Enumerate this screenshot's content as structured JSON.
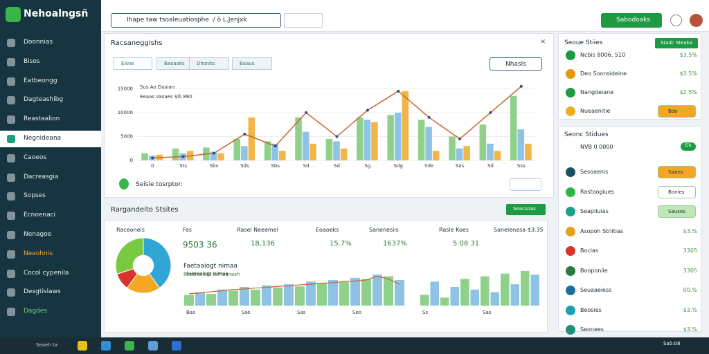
{
  "app": {
    "title": "Nehoalngsñ"
  },
  "sidebar": {
    "items": [
      "Doonnias",
      "Bisos",
      "Eatbeongg",
      "Dagteashibg",
      "Reastaalion",
      "Negnideana",
      "Caoeos",
      "Dacreasgia",
      "Sopses",
      "Ecnoenaci",
      "Nenagoe",
      "Neaohnis",
      "Cocol cypenila",
      "Desgtislaws",
      "Dagdes"
    ]
  },
  "topbar": {
    "search": "Ihape taw tsoaleuatiosphe ·/ ô L.Jenjxk",
    "button": "Sabodoaks"
  },
  "main": {
    "title": "Racsaneggishs",
    "tabs": [
      "Elsne",
      "Baoaaks",
      "Dhsnits",
      "Baaus"
    ],
    "filter": "Nhasls",
    "footer": "Seisle tosrptor:",
    "chart": {
      "type": "bar",
      "title": "Sus Ao Dusian",
      "subtitle": "Eeaas Vasaes $lli 880",
      "categories": [
        "0",
        "Sts",
        "Sbs",
        "Sds",
        "Sbs",
        "Sd",
        "Sd",
        "Sg",
        "Sdg",
        "Sde",
        "Sas",
        "Sd",
        "Sss"
      ],
      "series": [
        {
          "color": "#8fd18a",
          "values": [
            1500,
            2500,
            2700,
            4500,
            4000,
            9000,
            4500,
            9000,
            9500,
            8500,
            5000,
            7500,
            13500
          ]
        },
        {
          "color": "#8ec3e6",
          "values": [
            1000,
            1500,
            1800,
            3000,
            3500,
            6000,
            4000,
            8500,
            10000,
            7000,
            2500,
            3500,
            6500
          ]
        },
        {
          "color": "#f0b64a",
          "values": [
            1200,
            2000,
            1500,
            9000,
            2000,
            3500,
            2500,
            8000,
            14500,
            2000,
            3000,
            2000,
            3500
          ]
        }
      ],
      "line": {
        "color": "#c8642c",
        "values": [
          500,
          800,
          1500,
          5500,
          3000,
          10000,
          5000,
          10500,
          14500,
          9000,
          4500,
          10000,
          15500
        ]
      },
      "ylim": [
        0,
        16500
      ],
      "yticks": [
        0,
        5000,
        10000,
        15000
      ]
    }
  },
  "section": {
    "title": "Rargandeito Stsites",
    "button": "Seacsoas",
    "kpis": [
      {
        "label": "Raceoneis"
      },
      {
        "label": "Fas",
        "value": "9503 36"
      },
      {
        "label": "Rasel Neeemel",
        "value": "18,136"
      },
      {
        "label": "Eoaoeks",
        "value": "15.7%"
      },
      {
        "label": "Sanenesiis",
        "value": "1637%"
      },
      {
        "label": "Rasle Koes",
        "value": "5.08 31"
      },
      {
        "label": "Sanelenesa $3.35"
      }
    ],
    "pie": {
      "type": "pie",
      "values": [
        40,
        20,
        10,
        30
      ],
      "colors": [
        "#2fa6d6",
        "#f5a623",
        "#d9342b",
        "#7ac943"
      ]
    },
    "mini1": {
      "type": "bar",
      "title": "Faetaaiogt nimaa",
      "subtitle": "Reasneieds tameanesh",
      "categories": [
        "Bas",
        "Sse",
        "Sas",
        "Seo"
      ],
      "values": [
        20,
        25,
        22,
        30,
        28,
        35,
        30,
        38,
        34,
        40,
        36,
        45,
        42,
        48,
        44,
        52,
        50,
        58,
        55,
        48
      ],
      "line": [
        22,
        24,
        26,
        28,
        30,
        31,
        33,
        34,
        36,
        37,
        39,
        40,
        42,
        43,
        45,
        46,
        48,
        55,
        50,
        40
      ],
      "ylim": [
        0,
        70
      ]
    },
    "mini2": {
      "type": "bar",
      "categories": [
        "Ss",
        "Sas"
      ],
      "values": [
        20,
        45,
        15,
        35,
        50,
        30,
        55,
        25,
        60,
        40,
        65,
        58
      ],
      "ylim": [
        0,
        70
      ]
    }
  },
  "right": {
    "card1": {
      "title": "Seoue Stiies",
      "button": "Stadc Steaka",
      "rows": [
        {
          "label": "Ncbis 8006, 510",
          "value": "$3,5%"
        },
        {
          "label": "Deo Soonsideine",
          "value": "$3.5%"
        },
        {
          "label": "Nangdeiane",
          "value": "$2.5%"
        },
        {
          "label": "Nueaenitie",
          "button": "Bdo"
        }
      ]
    },
    "card2": {
      "title": "Seonc Stidues",
      "sub": "NVB 0 0000",
      "button": "Elb",
      "rows": [
        {
          "label": "Sesoaenis",
          "button": "Sssies"
        },
        {
          "label": "Rastoogiues",
          "button": "Bonies"
        },
        {
          "label": "Seapiiuias",
          "button": "Sauses"
        },
        {
          "label": "Asopoh Stnitias",
          "value": "$3.%"
        },
        {
          "label": "Bocias",
          "value": "3305"
        },
        {
          "label": "Booponiie",
          "value": "3305"
        },
        {
          "label": "Seuaaeiess",
          "value": "00.%"
        },
        {
          "label": "Beosies",
          "value": "$3.%"
        },
        {
          "label": "Seonees",
          "value": "$3.%"
        }
      ]
    }
  },
  "taskbar": {
    "search": "Seaeh ta",
    "clock": "Sa5:08"
  }
}
